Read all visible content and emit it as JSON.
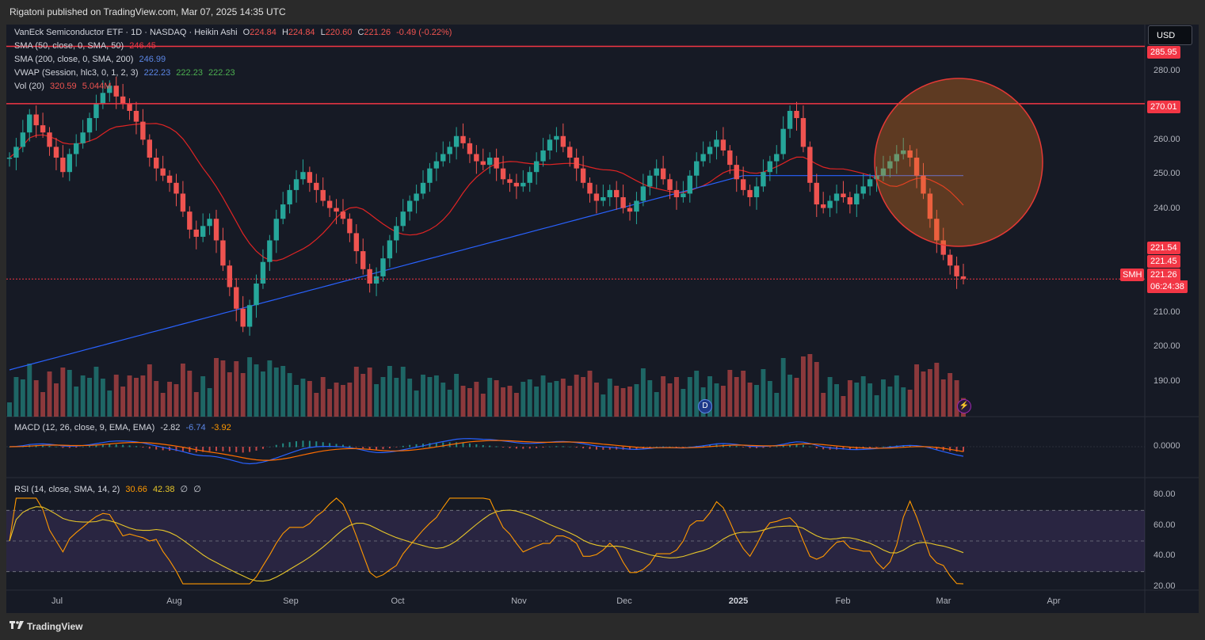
{
  "header": {
    "published_by": "Rigatoni published on TradingView.com, Mar 07, 2025 14:35 UTC"
  },
  "legend": {
    "symbol_line": "VanEck Semiconductor ETF · 1D · NASDAQ · Heikin Ashi",
    "ohlc": {
      "o_label": "O",
      "o": "224.84",
      "h_label": "H",
      "h": "224.84",
      "l_label": "L",
      "l": "220.60",
      "c_label": "C",
      "c": "221.26",
      "change": "-0.49 (-0.22%)"
    },
    "sma50": {
      "label": "SMA (50, close, 0, SMA, 50)",
      "value": "246.45"
    },
    "sma200": {
      "label": "SMA (200, close, 0, SMA, 200)",
      "value": "246.99"
    },
    "vwap": {
      "label": "VWAP (Session, hlc3, 0, 1, 2, 3)",
      "v1": "222.23",
      "v2": "222.23",
      "v3": "222.23"
    },
    "vol": {
      "label": "Vol (20)",
      "v1": "320.59",
      "v2": "5.044M"
    }
  },
  "currency": "USD",
  "price_labels": {
    "p1": "285.95",
    "p2": "270.01",
    "p3": "221.54",
    "p4": "221.45",
    "p5": "221.26",
    "countdown": "06:24:38",
    "symbol_tag": "SMH"
  },
  "y_ticks": [
    "280.00",
    "270.00",
    "260.00",
    "250.00",
    "240.00",
    "210.00",
    "200.00",
    "190.00"
  ],
  "x_ticks": [
    "Jul",
    "Aug",
    "Sep",
    "Oct",
    "Nov",
    "Dec",
    "2025",
    "Feb",
    "Mar",
    "Apr"
  ],
  "macd": {
    "label": "MACD (12, 26, close, 9, EMA, EMA)",
    "v1": "-2.82",
    "v2": "-6.74",
    "v3": "-3.92",
    "tick": "0.0000"
  },
  "rsi": {
    "label": "RSI (14, close, SMA, 14, 2)",
    "v1": "30.66",
    "v2": "42.38",
    "v3": "∅",
    "v4": "∅",
    "ticks": [
      "80.00",
      "60.00",
      "40.00",
      "20.00"
    ]
  },
  "footer": {
    "brand": "TradingView"
  },
  "markers": {
    "dividend": "D"
  },
  "colors": {
    "up": "#26a69a",
    "down": "#ef5350",
    "sma50": "#e02424",
    "sma200": "#2962ff",
    "level": "#f23645",
    "macd": "#2962ff",
    "signal": "#ff6d00",
    "rsi": "#ff9800",
    "rsi_ma": "#e6c52a"
  },
  "chart_data": {
    "type": "candlestick",
    "chart_type": "Heikin Ashi",
    "interval": "1D",
    "y_axis": {
      "range": [
        183,
        292
      ],
      "unit": "USD"
    },
    "horizontal_levels": [
      285.95,
      270.01,
      221.26
    ],
    "closes": [
      255,
      258,
      262,
      267,
      264,
      262,
      258,
      255,
      251,
      256,
      259,
      262,
      266,
      270,
      273,
      275,
      272,
      270,
      268,
      265,
      260,
      255,
      252,
      250,
      248,
      245,
      240,
      235,
      233,
      236,
      238,
      232,
      225,
      219,
      213,
      208,
      214,
      220,
      226,
      232,
      238,
      242,
      246,
      249,
      251,
      248,
      246,
      243,
      241,
      240,
      238,
      234,
      229,
      224,
      220,
      222,
      227,
      232,
      236,
      240,
      243,
      245,
      248,
      252,
      254,
      256,
      258,
      261,
      259,
      256,
      254,
      253,
      255,
      252,
      249,
      248,
      247,
      248,
      251,
      254,
      257,
      260,
      261,
      258,
      255,
      252,
      248,
      245,
      243,
      244,
      246,
      244,
      241,
      240,
      243,
      247,
      250,
      252,
      249,
      246,
      244,
      245,
      250,
      254,
      256,
      258,
      260,
      257,
      253,
      249,
      246,
      244,
      247,
      251,
      254,
      256,
      263,
      268,
      266,
      258,
      248,
      242,
      241,
      243,
      245,
      244,
      242,
      245,
      247,
      249,
      250,
      252,
      254,
      256,
      257,
      255,
      250,
      245,
      238,
      232,
      228,
      225,
      222,
      221.26
    ],
    "series_summary": [
      {
        "month": "Jul",
        "approx_close": 262
      },
      {
        "month": "Aug",
        "approx_close": 210
      },
      {
        "month": "Sep",
        "approx_close": 220
      },
      {
        "month": "Oct",
        "approx_close": 252
      },
      {
        "month": "Nov",
        "approx_close": 246
      },
      {
        "month": "Dec",
        "approx_close": 244
      },
      {
        "month": "2025",
        "approx_close": 250
      },
      {
        "month": "Feb",
        "approx_close": 245
      },
      {
        "month": "Mar",
        "approx_close": 221.26
      }
    ],
    "annotations": [
      {
        "type": "circle",
        "label": "",
        "around_price": 250,
        "around_month": "Feb"
      }
    ],
    "rsi_levels": [
      70,
      50,
      30
    ]
  }
}
